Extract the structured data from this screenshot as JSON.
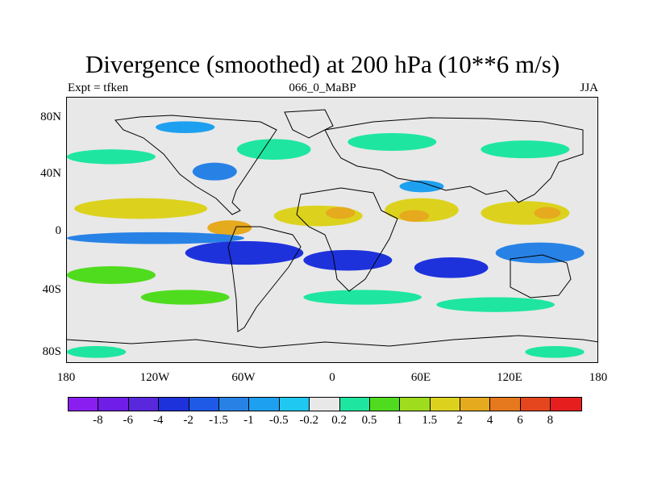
{
  "title": "Divergence (smoothed) at 200 hPa (10**6 m/s)",
  "left_label": "Expt = tfken",
  "center_label": "066_0_MaBP",
  "right_label": "JJA",
  "chart_data": {
    "type": "heatmap",
    "lat_ticks": [
      "80N",
      "40N",
      "0",
      "40S",
      "80S"
    ],
    "lon_ticks": [
      "180",
      "120W",
      "60W",
      "0",
      "60E",
      "120E",
      "180"
    ],
    "lat_range": [
      -90,
      90
    ],
    "lon_range": [
      -180,
      180
    ],
    "colorbar": {
      "colors": [
        "#8a1ef0",
        "#6e1ee6",
        "#5a28dc",
        "#1e32dc",
        "#1e5ae6",
        "#2882e6",
        "#1ea0f0",
        "#1ec8f0",
        "#e8e8e8",
        "#1ee6a0",
        "#50dc1e",
        "#a0dc1e",
        "#dcd21e",
        "#e6aa1e",
        "#e6781e",
        "#e6461e",
        "#e61e1e"
      ],
      "labels": [
        "-8",
        "-6",
        "-4",
        "-2",
        "-1.5",
        "-1",
        "-0.5",
        "-0.2",
        "0.2",
        "0.5",
        "1",
        "1.5",
        "2",
        "4",
        "6",
        "8"
      ]
    },
    "regions": [
      {
        "lon": 0,
        "lat": 0,
        "w": 360,
        "h": 180,
        "level": "0"
      },
      {
        "lon": -130,
        "lat": 15,
        "w": 90,
        "h": 14,
        "level": "2"
      },
      {
        "lon": -70,
        "lat": 2,
        "w": 30,
        "h": 10,
        "level": "4"
      },
      {
        "lon": -10,
        "lat": 10,
        "w": 60,
        "h": 14,
        "level": "2"
      },
      {
        "lon": 5,
        "lat": 12,
        "w": 20,
        "h": 8,
        "level": "4"
      },
      {
        "lon": 60,
        "lat": 14,
        "w": 50,
        "h": 16,
        "level": "2"
      },
      {
        "lon": 55,
        "lat": 10,
        "w": 20,
        "h": 8,
        "level": "4"
      },
      {
        "lon": 130,
        "lat": 12,
        "w": 60,
        "h": 16,
        "level": "2"
      },
      {
        "lon": 145,
        "lat": 12,
        "w": 18,
        "h": 8,
        "level": "4"
      },
      {
        "lon": -120,
        "lat": -5,
        "w": 120,
        "h": 8,
        "level": "-1"
      },
      {
        "lon": -60,
        "lat": -15,
        "w": 80,
        "h": 16,
        "level": "-2"
      },
      {
        "lon": 10,
        "lat": -20,
        "w": 60,
        "h": 14,
        "level": "-2"
      },
      {
        "lon": 80,
        "lat": -25,
        "w": 50,
        "h": 14,
        "level": "-2"
      },
      {
        "lon": 140,
        "lat": -15,
        "w": 60,
        "h": 14,
        "level": "-1"
      },
      {
        "lon": -150,
        "lat": -30,
        "w": 60,
        "h": 12,
        "level": "1"
      },
      {
        "lon": -100,
        "lat": -45,
        "w": 60,
        "h": 10,
        "level": "1"
      },
      {
        "lon": 20,
        "lat": -45,
        "w": 80,
        "h": 10,
        "level": "0.5"
      },
      {
        "lon": 110,
        "lat": -50,
        "w": 80,
        "h": 10,
        "level": "0.5"
      },
      {
        "lon": -150,
        "lat": 50,
        "w": 60,
        "h": 10,
        "level": "0.5"
      },
      {
        "lon": -40,
        "lat": 55,
        "w": 50,
        "h": 14,
        "level": "0.5"
      },
      {
        "lon": 40,
        "lat": 60,
        "w": 60,
        "h": 12,
        "level": "0.5"
      },
      {
        "lon": 130,
        "lat": 55,
        "w": 60,
        "h": 12,
        "level": "0.5"
      },
      {
        "lon": -100,
        "lat": 70,
        "w": 40,
        "h": 8,
        "level": "-0.5"
      },
      {
        "lon": -80,
        "lat": 40,
        "w": 30,
        "h": 12,
        "level": "-1"
      },
      {
        "lon": 60,
        "lat": 30,
        "w": 30,
        "h": 8,
        "level": "-0.5"
      },
      {
        "lon": -160,
        "lat": -82,
        "w": 40,
        "h": 8,
        "level": "0.5"
      },
      {
        "lon": 150,
        "lat": -82,
        "w": 40,
        "h": 8,
        "level": "0.5"
      }
    ]
  }
}
